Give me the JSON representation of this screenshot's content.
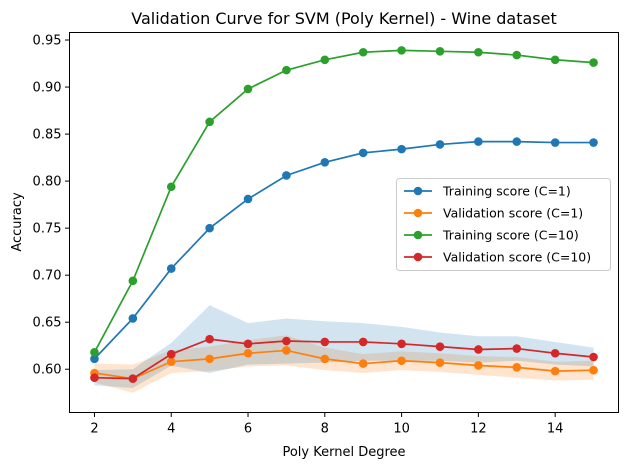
{
  "chart_data": {
    "type": "line",
    "title": "Validation Curve for SVM (Poly Kernel) - Wine dataset",
    "xlabel": "Poly Kernel Degree",
    "ylabel": "Accuracy",
    "xlim": [
      1.35,
      15.65
    ],
    "ylim": [
      0.554,
      0.958
    ],
    "xticks": [
      2,
      4,
      6,
      8,
      10,
      12,
      14
    ],
    "yticks": [
      0.6,
      0.65,
      0.7,
      0.75,
      0.8,
      0.85,
      0.9,
      0.95
    ],
    "ytick_labels": [
      "0.60",
      "0.65",
      "0.70",
      "0.75",
      "0.80",
      "0.85",
      "0.90",
      "0.95"
    ],
    "x": [
      2,
      3,
      4,
      5,
      6,
      7,
      8,
      9,
      10,
      11,
      12,
      13,
      14,
      15
    ],
    "grid": false,
    "legend_position": "center-right",
    "series": [
      {
        "name": "Training score (C=1)",
        "color": "#1f77b4",
        "values": [
          0.611,
          0.654,
          0.707,
          0.75,
          0.781,
          0.806,
          0.82,
          0.83,
          0.834,
          0.839,
          0.842,
          0.842,
          0.841,
          0.841
        ]
      },
      {
        "name": "Validation score (C=1)",
        "color": "#ff7f0e",
        "values": [
          0.596,
          0.59,
          0.608,
          0.611,
          0.617,
          0.62,
          0.611,
          0.606,
          0.609,
          0.607,
          0.604,
          0.602,
          0.598,
          0.599
        ],
        "band": [
          0.01,
          0.015,
          0.012,
          0.013,
          0.014,
          0.016,
          0.012,
          0.01,
          0.01,
          0.01,
          0.01,
          0.011,
          0.01,
          0.01
        ],
        "band_color": "#ff7f0e"
      },
      {
        "name": "Training score (C=10)",
        "color": "#2ca02c",
        "values": [
          0.618,
          0.694,
          0.794,
          0.863,
          0.898,
          0.918,
          0.929,
          0.937,
          0.939,
          0.938,
          0.937,
          0.934,
          0.929,
          0.926
        ]
      },
      {
        "name": "Validation score (C=10)",
        "color": "#d62728",
        "values": [
          0.591,
          0.59,
          0.616,
          0.632,
          0.627,
          0.63,
          0.629,
          0.629,
          0.627,
          0.624,
          0.621,
          0.622,
          0.617,
          0.613
        ],
        "band": [
          0.008,
          0.01,
          0.012,
          0.036,
          0.022,
          0.024,
          0.022,
          0.02,
          0.018,
          0.015,
          0.014,
          0.013,
          0.012,
          0.01
        ],
        "band_color": "#1f77b4"
      }
    ]
  }
}
